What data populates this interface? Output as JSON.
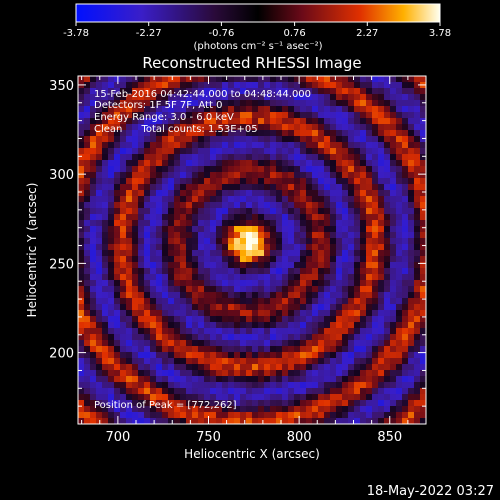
{
  "chart_data": {
    "type": "heatmap",
    "title": "Reconstructed RHESSI Image",
    "xlabel": "Heliocentric X (arcsec)",
    "ylabel": "Heliocentric Y (arcsec)",
    "xlim": [
      678,
      870
    ],
    "ylim": [
      160,
      355
    ],
    "x_ticks": [
      "700",
      "750",
      "800",
      "850"
    ],
    "y_ticks": [
      "200",
      "250",
      "300",
      "350"
    ],
    "x_tick_values": [
      700,
      750,
      800,
      850
    ],
    "y_tick_values": [
      200,
      250,
      300,
      350
    ],
    "colorbar": {
      "min": -3.78,
      "max": 3.78,
      "tick_labels": [
        "-3.78",
        "-2.27",
        "-0.76",
        "0.76",
        "2.27",
        "3.78"
      ],
      "tick_values": [
        -3.78,
        -2.27,
        -0.76,
        0.76,
        2.27,
        3.78
      ],
      "unit_label": "(photons cm⁻² s⁻¹ asec⁻²)"
    },
    "peak": [
      772,
      262
    ],
    "ring_radii_arcsec": [
      23,
      50,
      80
    ],
    "annotations": [
      "15-Feb-2016 04:42:44.000 to 04:48:44.000",
      "Detectors: 1F 5F 7F, Att 0",
      "Energy Range: 3.0 - 6.0 keV",
      "Clean      Total counts: 1.53E+05",
      "Position of Peak = [772,262]"
    ]
  },
  "footer": {
    "date": "18-May-2022 03:27"
  }
}
